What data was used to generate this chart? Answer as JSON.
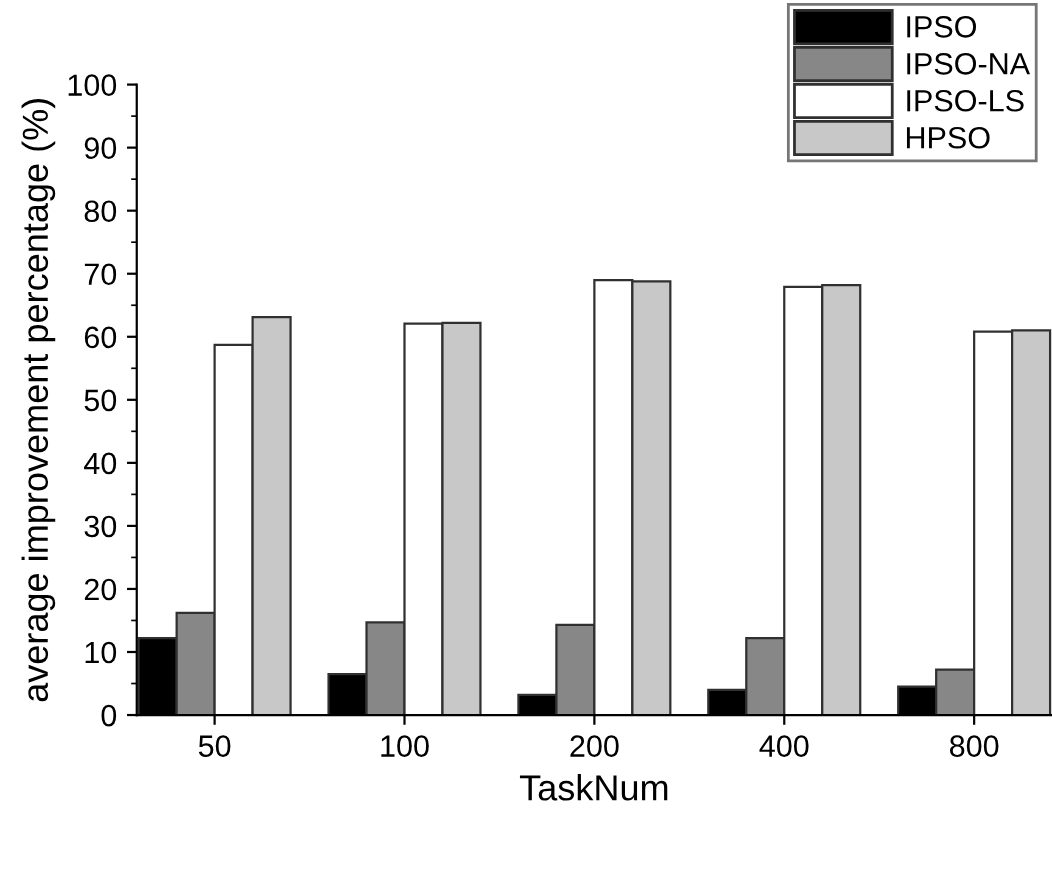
{
  "chart_data": {
    "type": "bar",
    "xlabel": "TaskNum",
    "ylabel": "average improvement percentage (%)",
    "categories": [
      "50",
      "100",
      "200",
      "400",
      "800"
    ],
    "series": [
      {
        "name": "IPSO",
        "color": "#000000",
        "values": [
          12.2,
          6.5,
          3.2,
          4.0,
          4.5
        ]
      },
      {
        "name": "IPSO-NA",
        "color": "#878787",
        "values": [
          16.2,
          14.7,
          14.3,
          12.2,
          7.2
        ]
      },
      {
        "name": "IPSO-LS",
        "color": "#ffffff",
        "values": [
          58.7,
          62.1,
          69.0,
          67.9,
          60.8
        ]
      },
      {
        "name": "HPSO",
        "color": "#c8c8c8",
        "values": [
          63.1,
          62.2,
          68.8,
          68.2,
          61.0
        ]
      }
    ],
    "ylim": [
      0,
      100
    ],
    "yticks": [
      0,
      10,
      20,
      30,
      40,
      50,
      60,
      70,
      80,
      90,
      100
    ],
    "grid": false,
    "legend": "top right"
  }
}
